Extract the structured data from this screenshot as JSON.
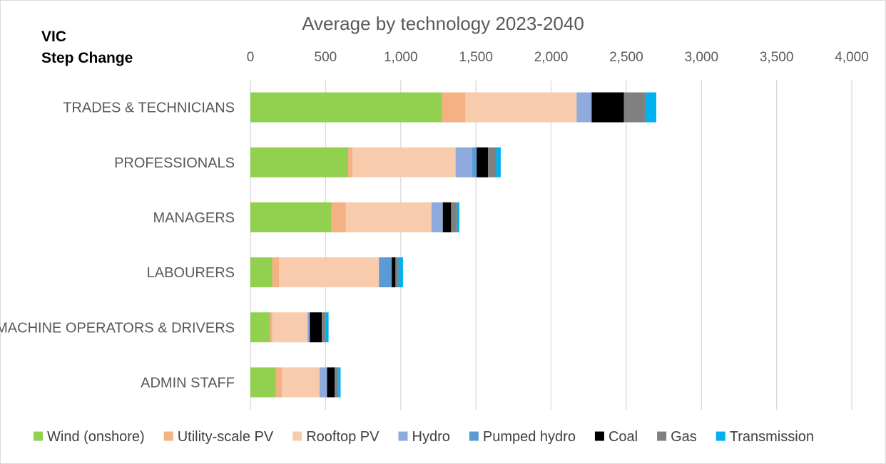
{
  "chart_data": {
    "type": "bar",
    "orientation": "horizontal",
    "stacked": true,
    "title": "Average by technology 2023-2040",
    "region_label": "VIC",
    "scenario_label": "Step Change",
    "xlabel": "",
    "ylabel": "",
    "xlim": [
      0,
      4000
    ],
    "x_ticks": [
      0,
      500,
      1000,
      1500,
      2000,
      2500,
      3000,
      3500,
      4000
    ],
    "x_tick_labels": [
      "0",
      "500",
      "1,000",
      "1,500",
      "2,000",
      "2,500",
      "3,000",
      "3,500",
      "4,000"
    ],
    "x_axis_position": "top",
    "grid": true,
    "legend_position": "bottom",
    "categories": [
      "TRADES & TECHNICIANS",
      "PROFESSIONALS",
      "MANAGERS",
      "LABOURERS",
      "MACHINE OPERATORS & DRIVERS",
      "ADMIN STAFF"
    ],
    "series": [
      {
        "name": "Wind (onshore)",
        "color": "#92d050",
        "values": [
          1275,
          650,
          540,
          145,
          130,
          170
        ]
      },
      {
        "name": "Utility-scale PV",
        "color": "#f4b183",
        "values": [
          155,
          30,
          95,
          45,
          15,
          40
        ]
      },
      {
        "name": "Rooftop PV",
        "color": "#f8cbad",
        "values": [
          740,
          685,
          570,
          665,
          235,
          250
        ]
      },
      {
        "name": "Hydro",
        "color": "#8faadc",
        "values": [
          100,
          110,
          75,
          0,
          15,
          50
        ]
      },
      {
        "name": "Pumped hydro",
        "color": "#5b9bd5",
        "values": [
          0,
          30,
          0,
          85,
          0,
          0
        ]
      },
      {
        "name": "Coal",
        "color": "#000000",
        "values": [
          215,
          75,
          55,
          25,
          80,
          50
        ]
      },
      {
        "name": "Gas",
        "color": "#808080",
        "values": [
          145,
          55,
          40,
          20,
          25,
          25
        ]
      },
      {
        "name": "Transmission",
        "color": "#00b0f0",
        "values": [
          70,
          30,
          15,
          30,
          20,
          15
        ]
      }
    ]
  }
}
